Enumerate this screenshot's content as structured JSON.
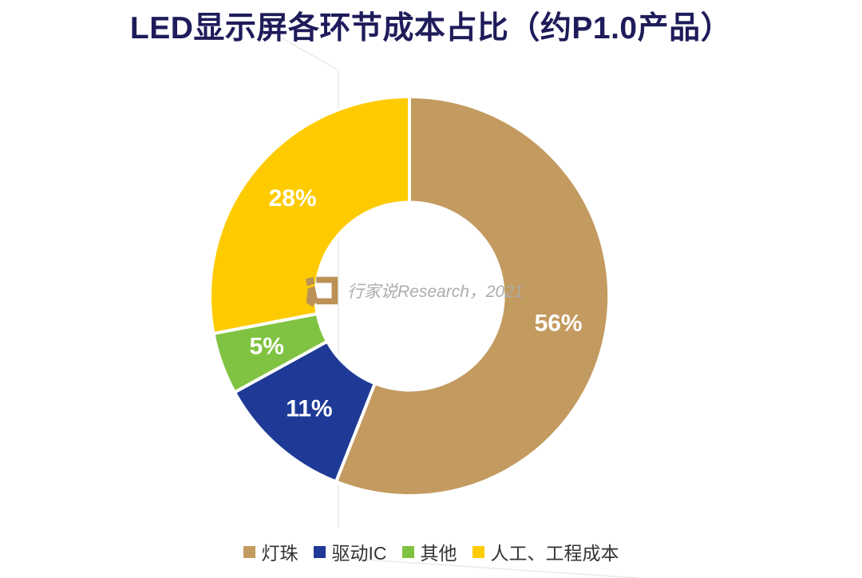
{
  "title": "LED显示屏各环节成本占比（约P1.0产品）",
  "title_color": "#1E1C5A",
  "watermark": {
    "text": "行家说Research，2021",
    "text_color": "#ACACAC",
    "logo_color": "#BB9156"
  },
  "chart_data": {
    "type": "pie",
    "subtype": "donut",
    "title": "LED显示屏各环节成本占比（约P1.0产品）",
    "categories": [
      "灯珠",
      "驱动IC",
      "其他",
      "人工、工程成本"
    ],
    "values": [
      56,
      11,
      5,
      28
    ],
    "unit": "%",
    "labels": [
      "56%",
      "11%",
      "5%",
      "28%"
    ],
    "colors": [
      "#C39A5F",
      "#1E3A96",
      "#80C342",
      "#FECB00"
    ],
    "start_angle_deg": 0,
    "direction": "clockwise",
    "inner_radius_ratio": 0.47,
    "slice_label_color": "#FFFFFF",
    "slice_divider_color": "#FFFFFF",
    "legend_position": "bottom"
  },
  "legend": {
    "items": [
      {
        "label": "灯珠",
        "color": "#C39A5F"
      },
      {
        "label": "驱动IC",
        "color": "#1E3A96"
      },
      {
        "label": "其他",
        "color": "#80C342"
      },
      {
        "label": "人工、工程成本",
        "color": "#FECB00"
      }
    ]
  }
}
